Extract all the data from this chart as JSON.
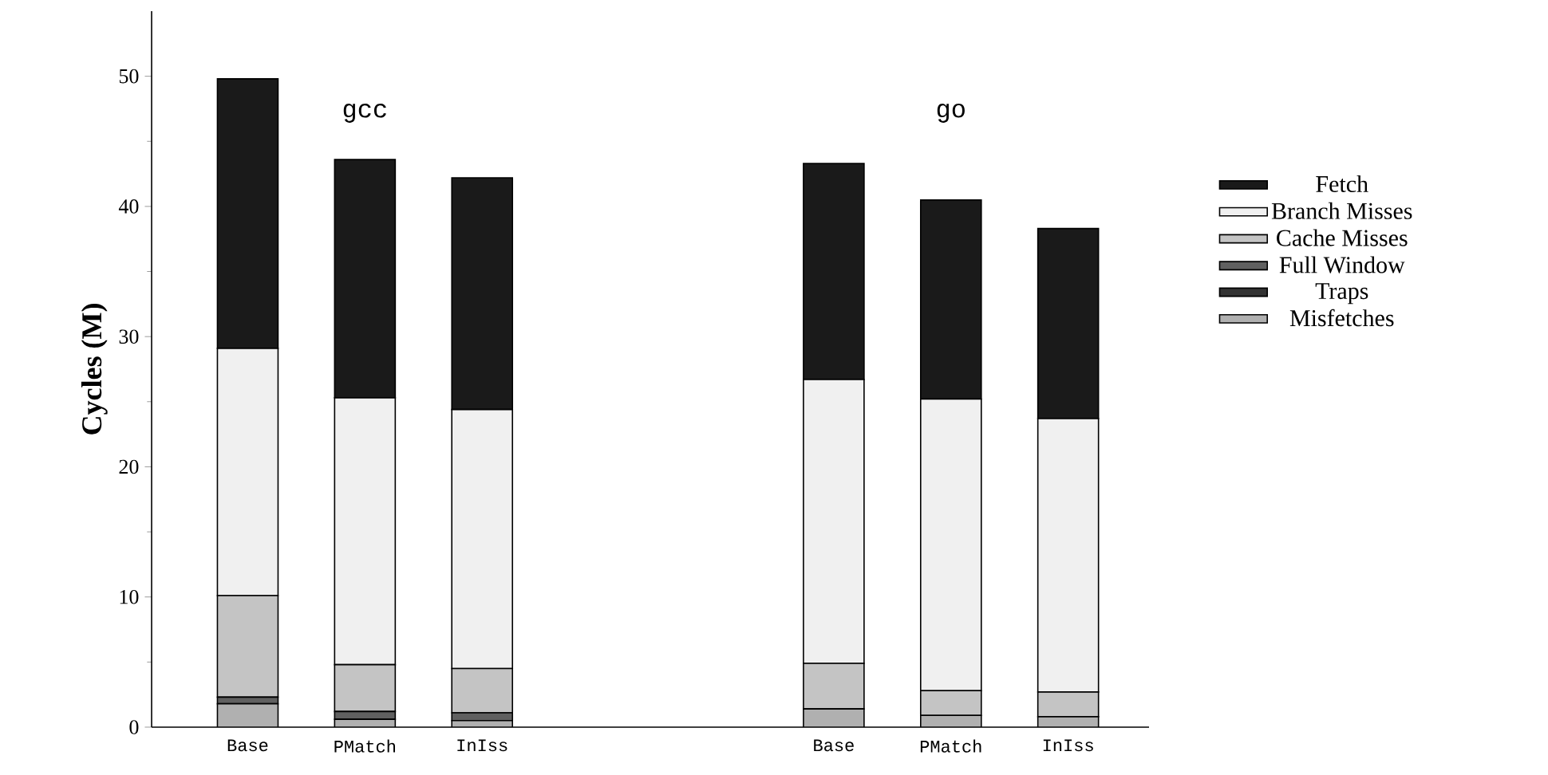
{
  "chart_data": {
    "type": "bar",
    "stacked": true,
    "ylabel": "Cycles (M)",
    "categories": [
      "Base",
      "PMatch",
      "InIss",
      null,
      null,
      "Base",
      "PMatch",
      "InIss"
    ],
    "series": [
      {
        "name": "Misfetches",
        "color": "#b0b0b0",
        "values": [
          1.8,
          0.6,
          0.5,
          null,
          null,
          1.4,
          0.9,
          0.8
        ]
      },
      {
        "name": "Traps",
        "color": "#333333",
        "values": [
          0,
          0,
          0,
          null,
          null,
          0,
          0,
          0
        ]
      },
      {
        "name": "Full Window",
        "color": "#606060",
        "values": [
          0.5,
          0.6,
          0.6,
          null,
          null,
          0,
          0,
          0
        ]
      },
      {
        "name": "Cache Misses",
        "color": "#c4c4c4",
        "values": [
          7.8,
          3.6,
          3.4,
          null,
          null,
          3.5,
          1.9,
          1.9
        ]
      },
      {
        "name": "Branch Misses",
        "color": "#f0f0f0",
        "values": [
          19.0,
          20.5,
          19.9,
          null,
          null,
          21.8,
          22.4,
          21.0
        ]
      },
      {
        "name": "Fetch",
        "color": "#1a1a1a",
        "values": [
          20.7,
          18.3,
          17.8,
          null,
          null,
          16.6,
          15.3,
          14.6
        ]
      }
    ],
    "annotations": [
      "gcc",
      "go"
    ],
    "ylim": [
      0,
      55
    ],
    "yticks": [
      0,
      10,
      20,
      30,
      40,
      50
    ],
    "legend": "right",
    "grid": false
  }
}
